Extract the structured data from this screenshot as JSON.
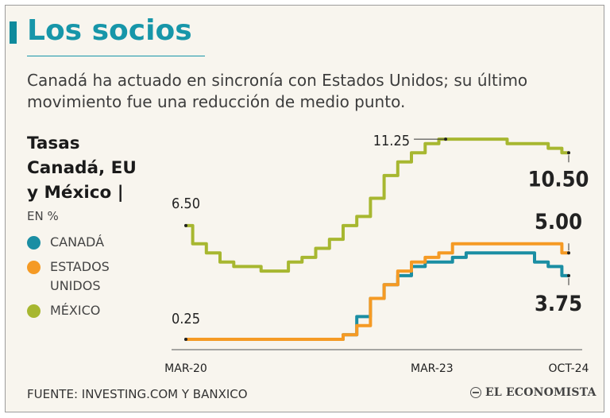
{
  "title": "Los socios",
  "subtitle": "Canadá ha actuado en sincronía con Estados Unidos; su último movimiento fue una reducción de medio punto.",
  "legend": {
    "title_lines": [
      "Tasas",
      "Canadá, EU",
      "y México |"
    ],
    "units": "EN %",
    "items": [
      {
        "label_lines": [
          "CANADÁ"
        ],
        "color": "#1b8ea3"
      },
      {
        "label_lines": [
          "ESTADOS",
          "UNIDOS"
        ],
        "color": "#f59a24"
      },
      {
        "label_lines": [
          "MÉXICO"
        ],
        "color": "#a7b730"
      }
    ]
  },
  "source": "FUENTE: INVESTING.COM Y BANXICO",
  "brand": "EL ECONOMISTA",
  "chart_data": {
    "type": "line",
    "x": [
      "2020-03",
      "2020-05",
      "2020-07",
      "2020-09",
      "2020-11",
      "2021-01",
      "2021-03",
      "2021-05",
      "2021-07",
      "2021-09",
      "2021-11",
      "2022-01",
      "2022-03",
      "2022-05",
      "2022-07",
      "2022-09",
      "2022-11",
      "2023-01",
      "2023-03",
      "2023-05",
      "2023-07",
      "2023-09",
      "2023-11",
      "2024-01",
      "2024-03",
      "2024-05",
      "2024-07",
      "2024-09",
      "2024-10"
    ],
    "x_tick_labels": [
      "MAR-20",
      "MAR-23",
      "OCT-24"
    ],
    "series": [
      {
        "name": "CANADÁ",
        "color": "#1b8ea3",
        "values": [
          0.25,
          0.25,
          0.25,
          0.25,
          0.25,
          0.25,
          0.25,
          0.25,
          0.25,
          0.25,
          0.25,
          0.25,
          0.5,
          1.5,
          2.5,
          3.25,
          3.75,
          4.25,
          4.5,
          4.5,
          4.75,
          5.0,
          5.0,
          5.0,
          5.0,
          5.0,
          4.5,
          4.25,
          3.75
        ]
      },
      {
        "name": "ESTADOS UNIDOS",
        "color": "#f59a24",
        "values": [
          0.25,
          0.25,
          0.25,
          0.25,
          0.25,
          0.25,
          0.25,
          0.25,
          0.25,
          0.25,
          0.25,
          0.25,
          0.5,
          1.0,
          2.5,
          3.25,
          4.0,
          4.5,
          4.75,
          5.0,
          5.5,
          5.5,
          5.5,
          5.5,
          5.5,
          5.5,
          5.5,
          5.5,
          5.0
        ]
      },
      {
        "name": "MÉXICO",
        "color": "#a7b730",
        "values": [
          6.5,
          5.5,
          5.0,
          4.5,
          4.25,
          4.25,
          4.0,
          4.0,
          4.5,
          4.75,
          5.25,
          5.75,
          6.5,
          7.0,
          8.0,
          9.25,
          10.0,
          10.5,
          11.0,
          11.25,
          11.25,
          11.25,
          11.25,
          11.25,
          11.0,
          11.0,
          11.0,
          10.75,
          10.5
        ]
      }
    ],
    "annotations": [
      {
        "text": "6.50",
        "series": 2,
        "index": 0
      },
      {
        "text": "11.25",
        "series": 2,
        "index": 19
      },
      {
        "text": "10.50",
        "series": 2,
        "index": 28
      },
      {
        "text": "5.00",
        "series": 1,
        "index": 28
      },
      {
        "text": "0.25",
        "series": 1,
        "index": 0
      },
      {
        "text": "3.75",
        "series": 0,
        "index": 28
      }
    ],
    "ylim": [
      0,
      12
    ],
    "grid": false
  }
}
